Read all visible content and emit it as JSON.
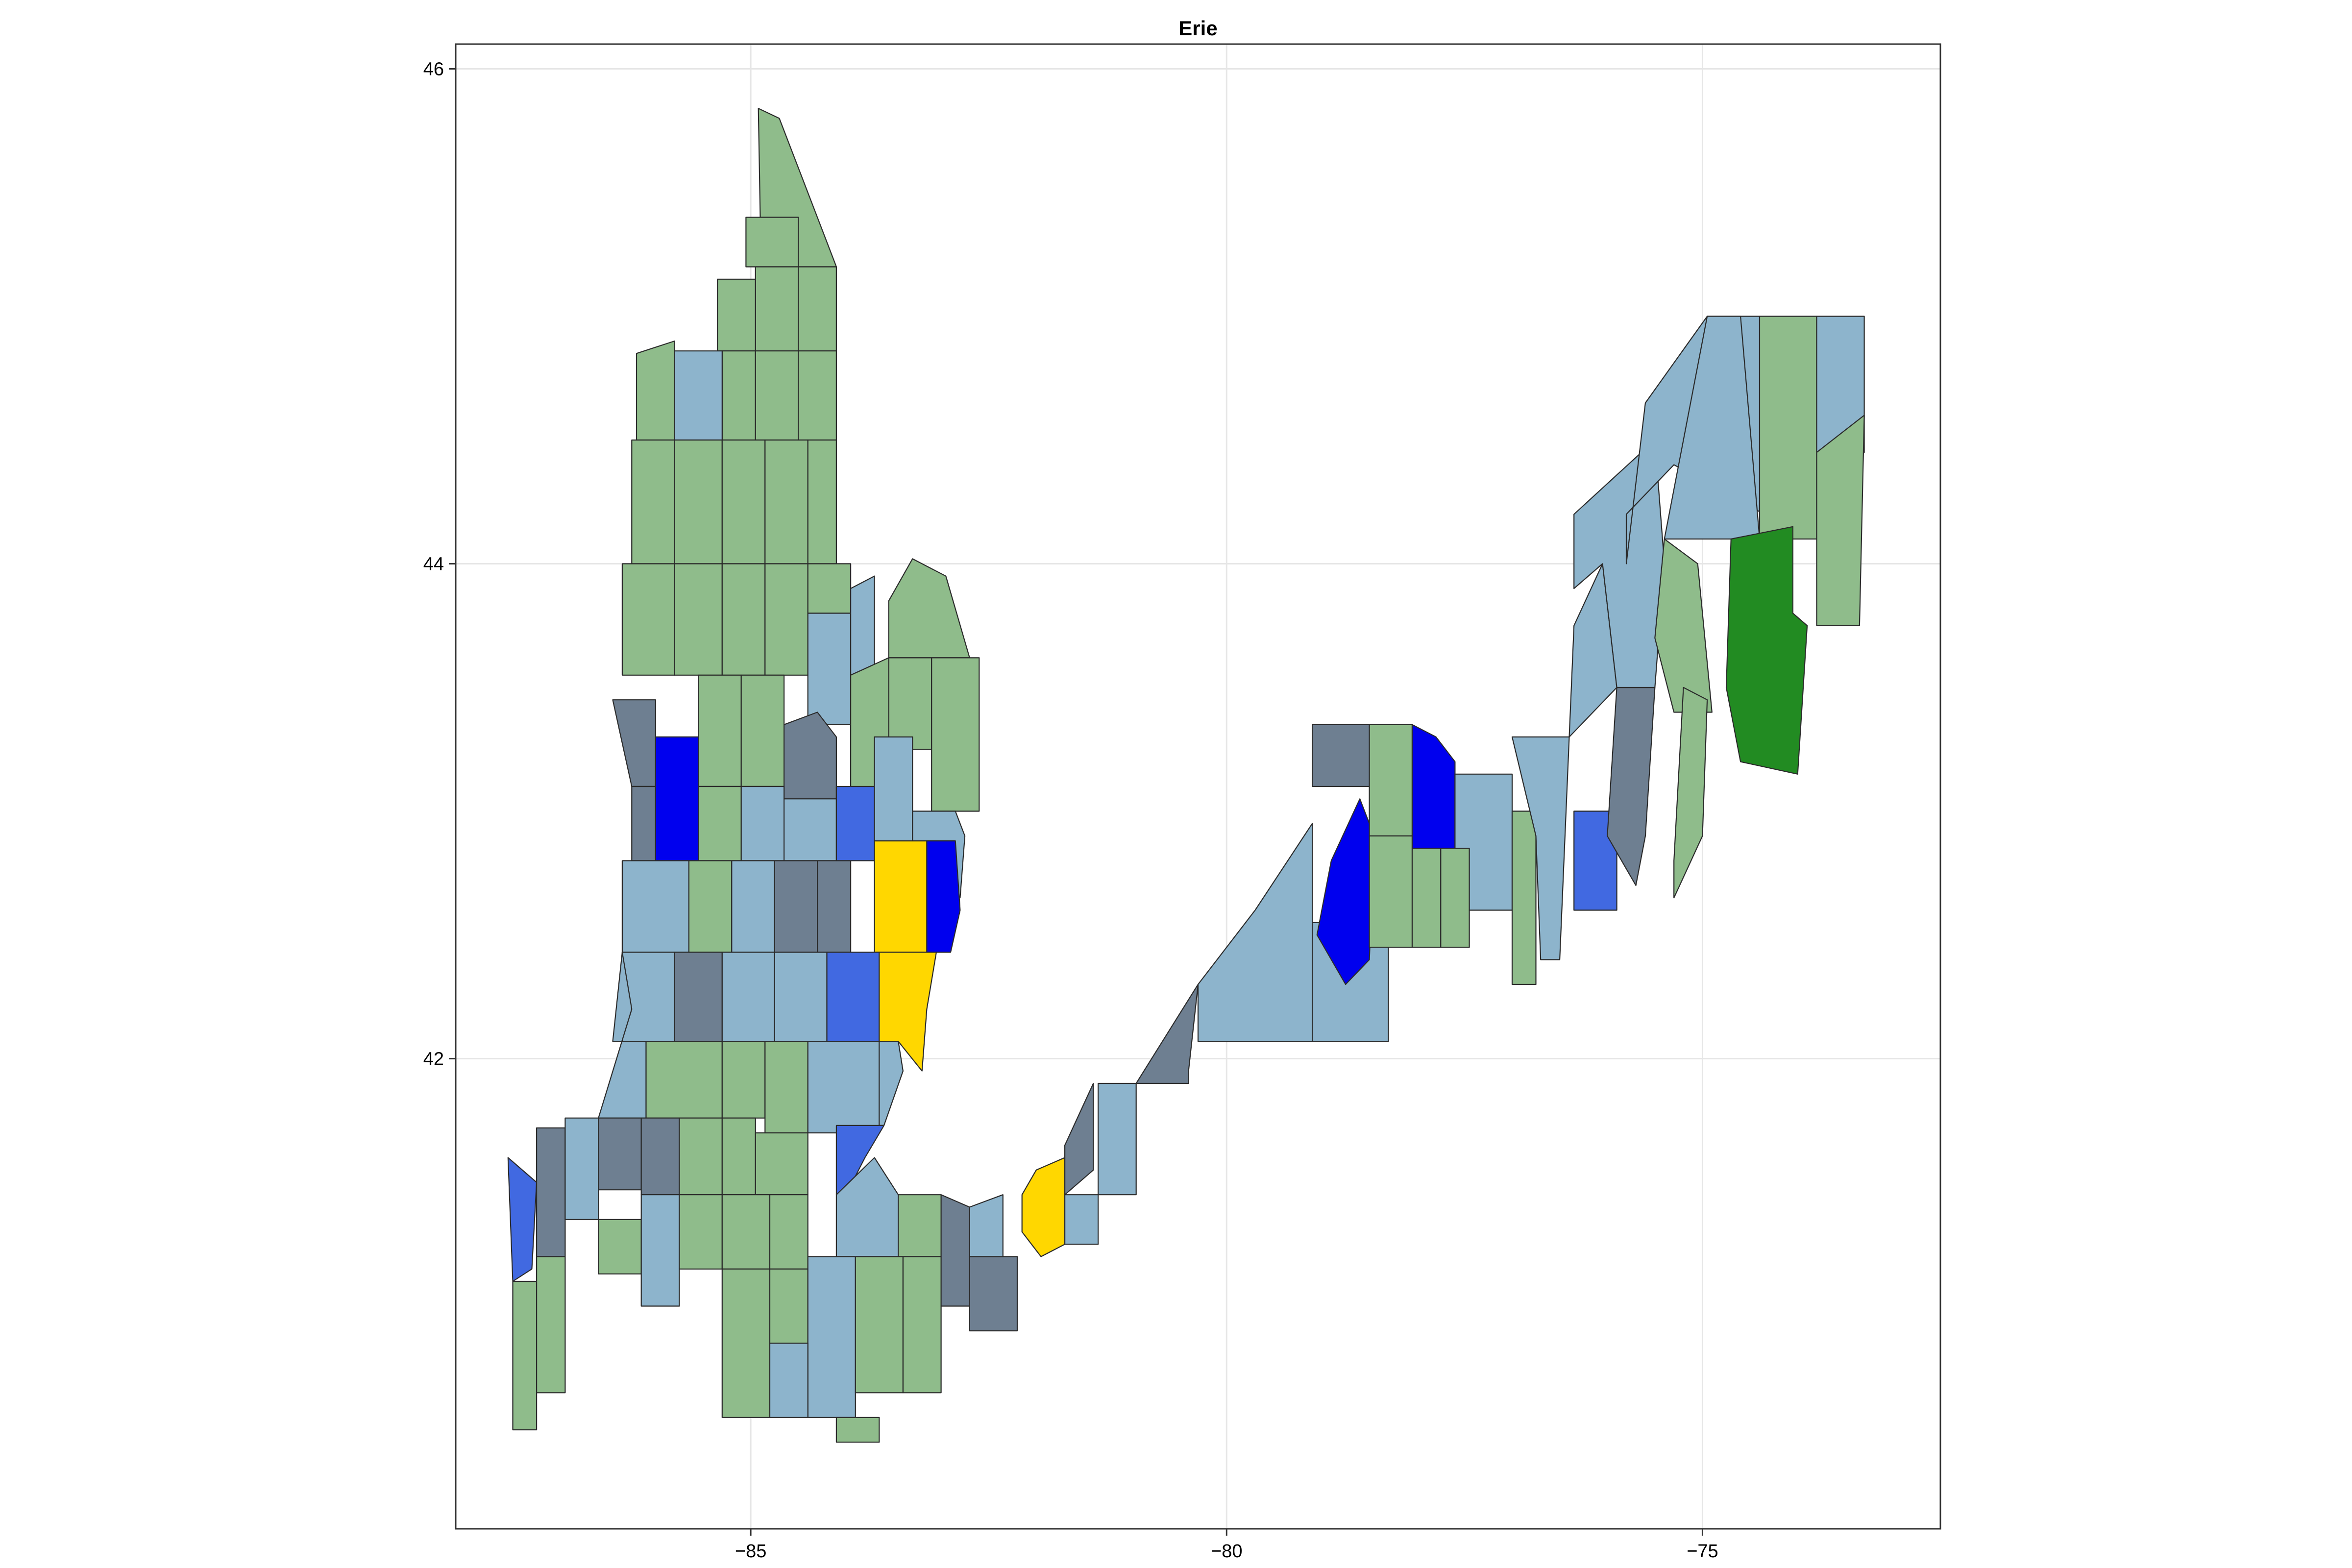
{
  "chart_data": {
    "type": "map",
    "title": "Erie",
    "xlabel": "",
    "ylabel": "",
    "xlim": [
      -88.1,
      -72.5
    ],
    "ylim": [
      40.1,
      46.1
    ],
    "x_ticks": [
      -85,
      -80,
      -75
    ],
    "y_ticks": [
      42,
      44,
      46
    ],
    "x_tick_labels": [
      "−85",
      "−80",
      "−75"
    ],
    "y_tick_labels": [
      "42",
      "44",
      "46"
    ],
    "grid": true,
    "legend": "none",
    "palette": {
      "sage": "#8fbc8b",
      "lightblue": "#8db4cc",
      "slate": "#6e7f91",
      "blue": "#0000ee",
      "royalblue": "#4169e1",
      "gold": "#ffd700",
      "forestgreen": "#228b22"
    }
  }
}
